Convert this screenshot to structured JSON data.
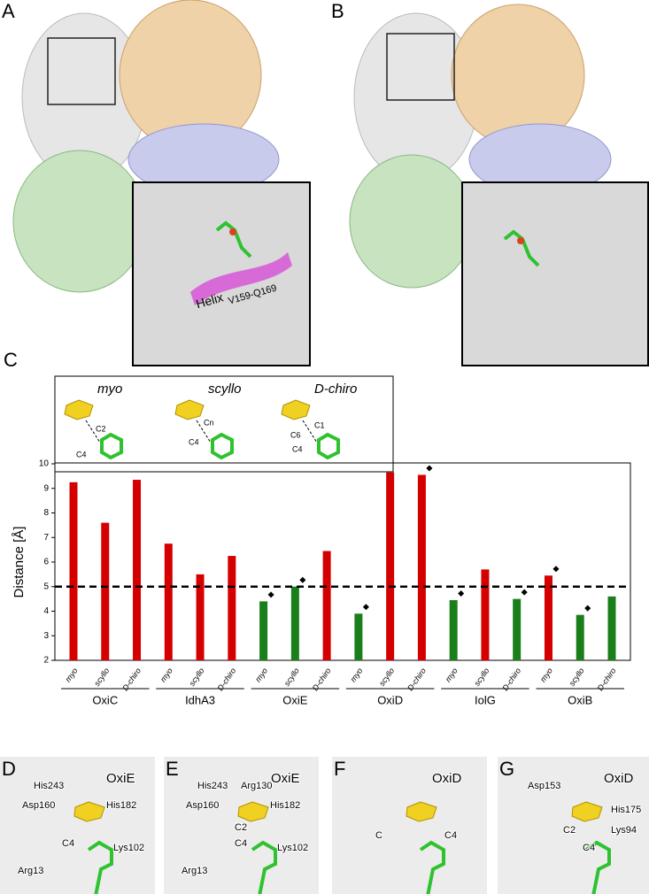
{
  "figure": {
    "panels": [
      {
        "label": "A",
        "helix": "Helix",
        "helix_sub": "V159-Q169"
      },
      {
        "label": "B"
      },
      {
        "label": "C",
        "inset": {
          "names": [
            "myo",
            "scyllo",
            "D-chiro"
          ],
          "atoms": [
            [
              "C2",
              "C4"
            ],
            [
              "Cn",
              "C4"
            ],
            [
              "C1",
              "C6",
              "C4"
            ]
          ]
        }
      },
      {
        "label": "D",
        "protein": "OxiE",
        "residues": [
          "His243",
          "Asp160",
          "His182",
          "C4",
          "Lys102",
          "Arg13"
        ]
      },
      {
        "label": "E",
        "protein": "OxiE",
        "residues": [
          "His243",
          "Arg130",
          "Asp160",
          "His182",
          "C2",
          "C4",
          "Lys102",
          "Arg13"
        ]
      },
      {
        "label": "F",
        "protein": "OxiD",
        "residues": [
          "C",
          "C4"
        ]
      },
      {
        "label": "G",
        "protein": "OxiD",
        "residues": [
          "Asp153",
          "His175",
          "C2",
          "Lys94",
          "C4"
        ]
      }
    ]
  },
  "chart_data": {
    "type": "bar",
    "y_label": "Distance [Å]",
    "categories": [
      "myo",
      "scyllo",
      "D-chiro",
      "myo",
      "scyllo",
      "D-chiro",
      "myo",
      "scyllo",
      "D-chiro",
      "myo",
      "scyllo",
      "D-chiro",
      "myo",
      "scyllo",
      "D-chiro",
      "myo",
      "scyllo",
      "D-chiro"
    ],
    "groups": [
      "OxiC",
      "IdhA3",
      "OxiE",
      "OxiD",
      "IolG",
      "OxiB"
    ],
    "values": [
      9.25,
      7.6,
      9.35,
      6.75,
      5.5,
      6.25,
      4.4,
      5.0,
      6.45,
      3.9,
      9.65,
      9.55,
      4.45,
      5.7,
      4.5,
      5.45,
      3.85,
      4.6
    ],
    "colors": [
      "#d40000",
      "#d40000",
      "#d40000",
      "#d40000",
      "#d40000",
      "#d40000",
      "#1a7f1a",
      "#1a7f1a",
      "#d40000",
      "#1a7f1a",
      "#d40000",
      "#d40000",
      "#1a7f1a",
      "#d40000",
      "#1a7f1a",
      "#d40000",
      "#1a7f1a",
      "#1a7f1a"
    ],
    "marked": [
      false,
      false,
      false,
      false,
      false,
      false,
      true,
      true,
      false,
      true,
      false,
      true,
      true,
      false,
      true,
      true,
      true,
      false
    ],
    "threshold": 5,
    "ylim": [
      2,
      10
    ],
    "yticks": [
      2,
      3,
      4,
      5,
      6,
      7,
      8,
      9,
      10
    ]
  }
}
